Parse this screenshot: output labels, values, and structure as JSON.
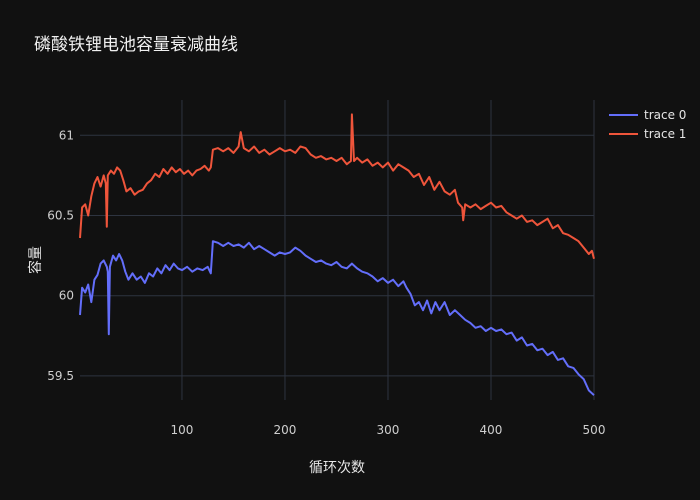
{
  "chart_data": {
    "type": "line",
    "title": "磷酸铁锂电池容量衰减曲线",
    "xlabel": "循环次数",
    "ylabel": "容量",
    "xlim": [
      1,
      500
    ],
    "ylim": [
      59.35,
      61.22
    ],
    "x_ticks": [
      100,
      200,
      300,
      400,
      500
    ],
    "y_ticks": [
      59.5,
      60,
      60.5,
      61
    ],
    "grid": true,
    "legend_position": "top-right",
    "series": [
      {
        "name": "trace 0",
        "color": "#636efa",
        "points": [
          [
            1,
            59.88
          ],
          [
            3,
            60.05
          ],
          [
            6,
            60.02
          ],
          [
            9,
            60.07
          ],
          [
            12,
            59.96
          ],
          [
            15,
            60.1
          ],
          [
            18,
            60.13
          ],
          [
            21,
            60.2
          ],
          [
            24,
            60.22
          ],
          [
            27,
            60.18
          ],
          [
            28,
            60.15
          ],
          [
            29,
            59.76
          ],
          [
            30,
            60.18
          ],
          [
            33,
            60.25
          ],
          [
            36,
            60.22
          ],
          [
            39,
            60.26
          ],
          [
            42,
            60.22
          ],
          [
            45,
            60.15
          ],
          [
            48,
            60.1
          ],
          [
            52,
            60.14
          ],
          [
            56,
            60.1
          ],
          [
            60,
            60.12
          ],
          [
            64,
            60.08
          ],
          [
            68,
            60.14
          ],
          [
            72,
            60.12
          ],
          [
            76,
            60.17
          ],
          [
            80,
            60.14
          ],
          [
            84,
            60.19
          ],
          [
            88,
            60.16
          ],
          [
            92,
            60.2
          ],
          [
            96,
            60.17
          ],
          [
            100,
            60.16
          ],
          [
            105,
            60.18
          ],
          [
            110,
            60.15
          ],
          [
            115,
            60.17
          ],
          [
            120,
            60.16
          ],
          [
            125,
            60.18
          ],
          [
            128,
            60.14
          ],
          [
            130,
            60.34
          ],
          [
            135,
            60.33
          ],
          [
            140,
            60.31
          ],
          [
            145,
            60.33
          ],
          [
            150,
            60.31
          ],
          [
            155,
            60.32
          ],
          [
            160,
            60.3
          ],
          [
            165,
            60.33
          ],
          [
            170,
            60.29
          ],
          [
            175,
            60.31
          ],
          [
            180,
            60.29
          ],
          [
            185,
            60.27
          ],
          [
            190,
            60.25
          ],
          [
            195,
            60.27
          ],
          [
            200,
            60.26
          ],
          [
            205,
            60.27
          ],
          [
            210,
            60.3
          ],
          [
            215,
            60.28
          ],
          [
            220,
            60.25
          ],
          [
            225,
            60.23
          ],
          [
            230,
            60.21
          ],
          [
            235,
            60.22
          ],
          [
            240,
            60.2
          ],
          [
            245,
            60.19
          ],
          [
            250,
            60.21
          ],
          [
            255,
            60.18
          ],
          [
            260,
            60.17
          ],
          [
            265,
            60.2
          ],
          [
            270,
            60.17
          ],
          [
            275,
            60.15
          ],
          [
            280,
            60.14
          ],
          [
            285,
            60.12
          ],
          [
            290,
            60.09
          ],
          [
            295,
            60.11
          ],
          [
            300,
            60.08
          ],
          [
            305,
            60.1
          ],
          [
            310,
            60.06
          ],
          [
            315,
            60.09
          ],
          [
            318,
            60.05
          ],
          [
            322,
            60.01
          ],
          [
            326,
            59.94
          ],
          [
            330,
            59.96
          ],
          [
            334,
            59.91
          ],
          [
            338,
            59.97
          ],
          [
            342,
            59.89
          ],
          [
            346,
            59.96
          ],
          [
            350,
            59.91
          ],
          [
            355,
            59.96
          ],
          [
            360,
            59.88
          ],
          [
            365,
            59.91
          ],
          [
            370,
            59.88
          ],
          [
            375,
            59.85
          ],
          [
            380,
            59.83
          ],
          [
            385,
            59.8
          ],
          [
            390,
            59.81
          ],
          [
            395,
            59.78
          ],
          [
            400,
            59.8
          ],
          [
            405,
            59.78
          ],
          [
            410,
            59.79
          ],
          [
            415,
            59.76
          ],
          [
            420,
            59.77
          ],
          [
            425,
            59.72
          ],
          [
            430,
            59.74
          ],
          [
            435,
            59.69
          ],
          [
            440,
            59.7
          ],
          [
            445,
            59.66
          ],
          [
            450,
            59.67
          ],
          [
            455,
            59.63
          ],
          [
            460,
            59.65
          ],
          [
            465,
            59.6
          ],
          [
            470,
            59.61
          ],
          [
            475,
            59.56
          ],
          [
            480,
            59.55
          ],
          [
            485,
            59.51
          ],
          [
            490,
            59.48
          ],
          [
            495,
            59.41
          ],
          [
            500,
            59.38
          ]
        ]
      },
      {
        "name": "trace 1",
        "color": "#ef553b",
        "points": [
          [
            1,
            60.36
          ],
          [
            3,
            60.55
          ],
          [
            6,
            60.57
          ],
          [
            9,
            60.5
          ],
          [
            12,
            60.62
          ],
          [
            15,
            60.7
          ],
          [
            18,
            60.74
          ],
          [
            21,
            60.68
          ],
          [
            24,
            60.75
          ],
          [
            26,
            60.7
          ],
          [
            27,
            60.43
          ],
          [
            28,
            60.75
          ],
          [
            31,
            60.78
          ],
          [
            34,
            60.76
          ],
          [
            37,
            60.8
          ],
          [
            40,
            60.78
          ],
          [
            43,
            60.72
          ],
          [
            46,
            60.65
          ],
          [
            50,
            60.67
          ],
          [
            54,
            60.63
          ],
          [
            58,
            60.65
          ],
          [
            62,
            60.66
          ],
          [
            66,
            60.7
          ],
          [
            70,
            60.72
          ],
          [
            74,
            60.76
          ],
          [
            78,
            60.74
          ],
          [
            82,
            60.79
          ],
          [
            86,
            60.76
          ],
          [
            90,
            60.8
          ],
          [
            94,
            60.77
          ],
          [
            98,
            60.79
          ],
          [
            102,
            60.76
          ],
          [
            106,
            60.78
          ],
          [
            110,
            60.75
          ],
          [
            114,
            60.78
          ],
          [
            118,
            60.79
          ],
          [
            122,
            60.81
          ],
          [
            126,
            60.78
          ],
          [
            128,
            60.8
          ],
          [
            130,
            60.91
          ],
          [
            135,
            60.92
          ],
          [
            140,
            60.9
          ],
          [
            145,
            60.92
          ],
          [
            150,
            60.89
          ],
          [
            155,
            60.93
          ],
          [
            157,
            61.02
          ],
          [
            160,
            60.92
          ],
          [
            165,
            60.9
          ],
          [
            170,
            60.93
          ],
          [
            175,
            60.89
          ],
          [
            180,
            60.91
          ],
          [
            185,
            60.88
          ],
          [
            190,
            60.9
          ],
          [
            195,
            60.92
          ],
          [
            200,
            60.9
          ],
          [
            205,
            60.91
          ],
          [
            210,
            60.89
          ],
          [
            215,
            60.93
          ],
          [
            220,
            60.92
          ],
          [
            225,
            60.88
          ],
          [
            230,
            60.86
          ],
          [
            235,
            60.87
          ],
          [
            240,
            60.85
          ],
          [
            245,
            60.86
          ],
          [
            250,
            60.84
          ],
          [
            255,
            60.86
          ],
          [
            260,
            60.82
          ],
          [
            264,
            60.84
          ],
          [
            265,
            61.13
          ],
          [
            267,
            60.84
          ],
          [
            270,
            60.86
          ],
          [
            275,
            60.83
          ],
          [
            280,
            60.85
          ],
          [
            285,
            60.81
          ],
          [
            290,
            60.83
          ],
          [
            295,
            60.8
          ],
          [
            300,
            60.83
          ],
          [
            305,
            60.78
          ],
          [
            310,
            60.82
          ],
          [
            315,
            60.8
          ],
          [
            320,
            60.78
          ],
          [
            325,
            60.74
          ],
          [
            330,
            60.76
          ],
          [
            335,
            60.69
          ],
          [
            340,
            60.74
          ],
          [
            345,
            60.66
          ],
          [
            350,
            60.71
          ],
          [
            355,
            60.65
          ],
          [
            360,
            60.63
          ],
          [
            365,
            60.66
          ],
          [
            368,
            60.58
          ],
          [
            372,
            60.55
          ],
          [
            373,
            60.47
          ],
          [
            375,
            60.57
          ],
          [
            380,
            60.55
          ],
          [
            385,
            60.57
          ],
          [
            390,
            60.54
          ],
          [
            395,
            60.56
          ],
          [
            400,
            60.58
          ],
          [
            405,
            60.55
          ],
          [
            410,
            60.56
          ],
          [
            415,
            60.52
          ],
          [
            420,
            60.5
          ],
          [
            425,
            60.48
          ],
          [
            430,
            60.5
          ],
          [
            435,
            60.46
          ],
          [
            440,
            60.47
          ],
          [
            445,
            60.44
          ],
          [
            450,
            60.46
          ],
          [
            455,
            60.48
          ],
          [
            460,
            60.42
          ],
          [
            465,
            60.44
          ],
          [
            470,
            60.39
          ],
          [
            475,
            60.38
          ],
          [
            480,
            60.36
          ],
          [
            485,
            60.34
          ],
          [
            490,
            60.3
          ],
          [
            495,
            60.26
          ],
          [
            498,
            60.28
          ],
          [
            500,
            60.23
          ]
        ]
      }
    ]
  }
}
